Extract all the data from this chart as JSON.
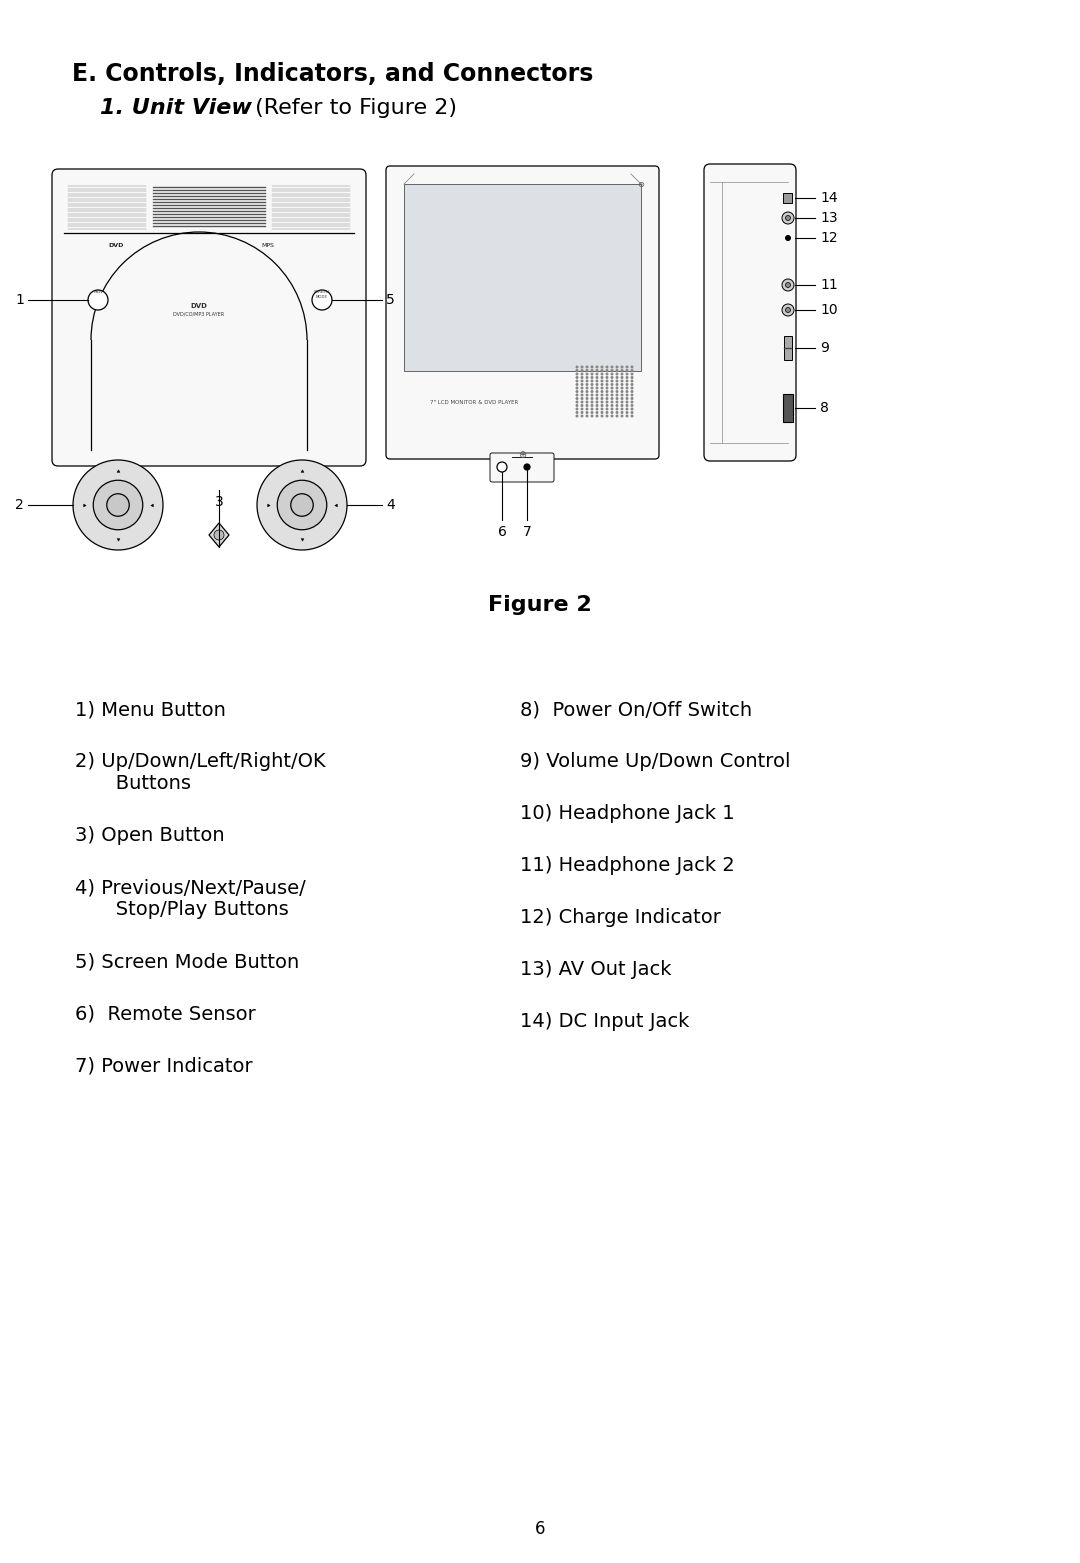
{
  "title_line1": "E. Controls, Indicators, and Connectors",
  "title_line2_bold": "1. Unit View",
  "title_line2_normal": " (Refer to Figure 2)",
  "figure_label": "Figure 2",
  "page_number": "6",
  "bg_color": "#ffffff",
  "text_color": "#000000",
  "left_items": [
    [
      "1) Menu Button"
    ],
    [
      "2) Up/Down/Left/Right/OK",
      "   Buttons"
    ],
    [
      "3) Open Button"
    ],
    [
      "4) Previous/Next/Pause/",
      "   Stop/Play Buttons"
    ],
    [
      "5) Screen Mode Button"
    ],
    [
      "6)  Remote Sensor"
    ],
    [
      "7) Power Indicator"
    ]
  ],
  "right_items": [
    [
      "8)  Power On/Off Switch"
    ],
    [
      "9) Volume Up/Down Control"
    ],
    [
      "10) Headphone Jack 1"
    ],
    [
      "11) Headphone Jack 2"
    ],
    [
      "12) Charge Indicator"
    ],
    [
      "13) AV Out Jack"
    ],
    [
      "14) DC Input Jack"
    ]
  ],
  "title_fontsize": 17,
  "subtitle_fontsize": 16,
  "body_fontsize": 14,
  "figure_label_fontsize": 16,
  "diagram_lw": 0.9,
  "diagram_color": "#000000",
  "diagram_fill": "#f8f8f8",
  "grille_color": "#888888"
}
